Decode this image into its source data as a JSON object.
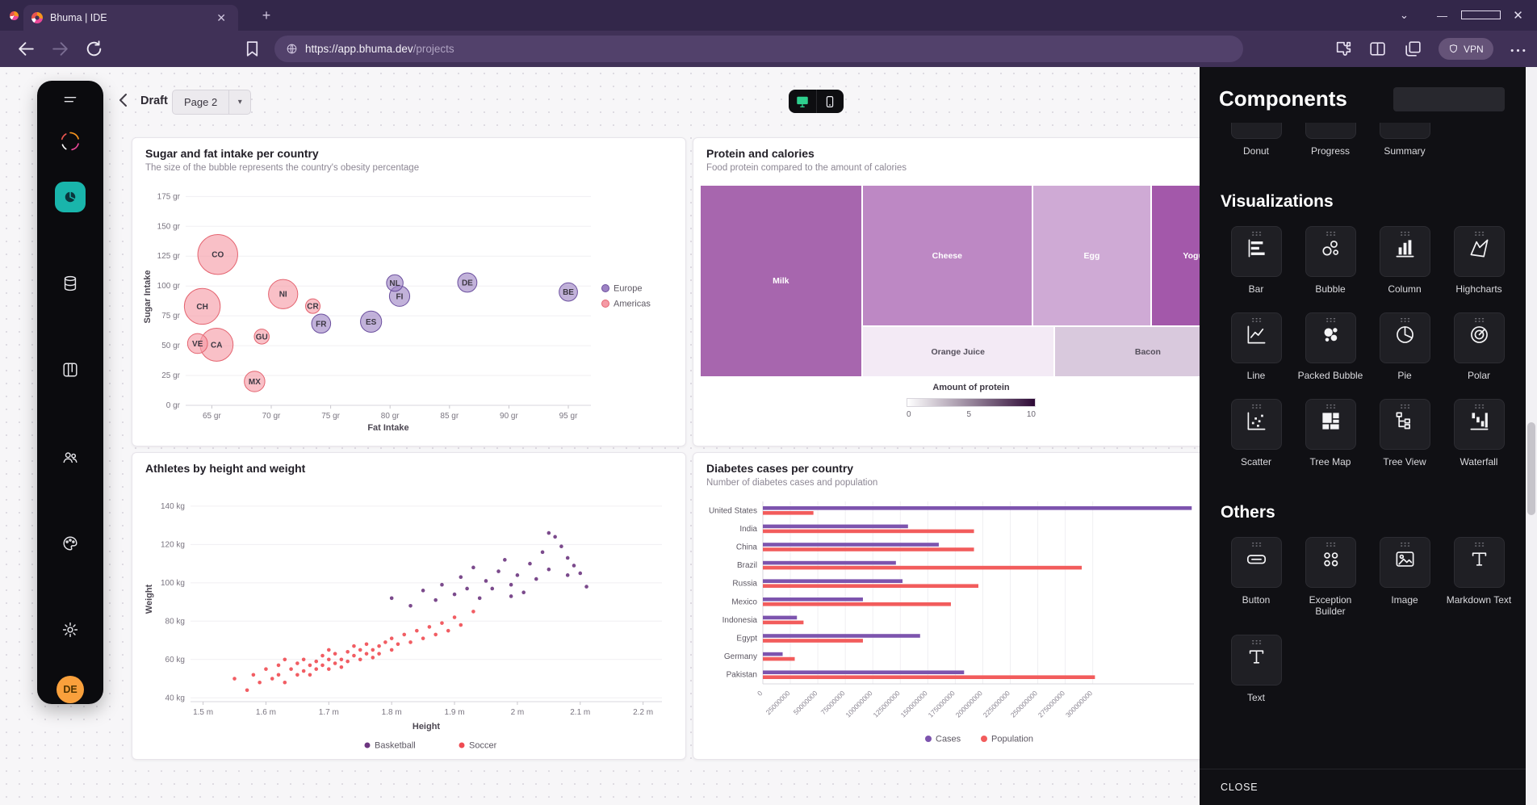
{
  "browser": {
    "tab_title": "Bhuma | IDE",
    "url_host": "https://app.bhuma.dev",
    "url_path": "/projects",
    "vpn_label": "VPN"
  },
  "topbar": {
    "draft_label": "Draft",
    "page_label": "Page 2"
  },
  "sidebar": {
    "avatar_initials": "DE"
  },
  "panel": {
    "title": "Components",
    "close_label": "CLOSE",
    "groups": [
      {
        "heading": "",
        "partial": true,
        "items": [
          {
            "label": "Donut",
            "icon": "donut-icon"
          },
          {
            "label": "Progress",
            "icon": "progress-icon"
          },
          {
            "label": "Summary",
            "icon": "summary-icon"
          }
        ]
      },
      {
        "heading": "Visualizations",
        "items": [
          {
            "label": "Bar",
            "icon": "bar-icon"
          },
          {
            "label": "Bubble",
            "icon": "bubble-icon"
          },
          {
            "label": "Column",
            "icon": "column-icon"
          },
          {
            "label": "Highcharts",
            "icon": "highcharts-icon"
          },
          {
            "label": "Line",
            "icon": "line-icon"
          },
          {
            "label": "Packed Bubble",
            "icon": "packed-bubble-icon"
          },
          {
            "label": "Pie",
            "icon": "pie-icon"
          },
          {
            "label": "Polar",
            "icon": "polar-icon"
          },
          {
            "label": "Scatter",
            "icon": "scatter-icon"
          },
          {
            "label": "Tree Map",
            "icon": "tree-map-icon"
          },
          {
            "label": "Tree View",
            "icon": "tree-view-icon"
          },
          {
            "label": "Waterfall",
            "icon": "waterfall-icon"
          }
        ]
      },
      {
        "heading": "Others",
        "items": [
          {
            "label": "Button",
            "icon": "button-icon"
          },
          {
            "label": "Exception Builder",
            "icon": "exception-builder-icon"
          },
          {
            "label": "Image",
            "icon": "image-icon"
          },
          {
            "label": "Markdown Text",
            "icon": "markdown-text-icon"
          },
          {
            "label": "Text",
            "icon": "text-icon"
          }
        ]
      }
    ]
  },
  "chart_data": [
    {
      "id": "sugar-fat",
      "type": "bubble",
      "title": "Sugar and fat intake per country",
      "subtitle": "The size of the bubble represents the country's obesity percentage",
      "xlabel": "Fat Intake",
      "ylabel": "Sugar Intake",
      "x_unit": " gr",
      "y_unit": " gr",
      "x_ticks": [
        65,
        70,
        75,
        80,
        85,
        90,
        95
      ],
      "y_ticks": [
        0,
        25,
        50,
        75,
        100,
        125,
        150,
        175
      ],
      "xlim": [
        62.8,
        96.9
      ],
      "ylim": [
        0,
        182
      ],
      "legend_position": "right",
      "series": [
        {
          "name": "Europe",
          "color": "#9D82C4",
          "stroke": "#6B4F9E",
          "points": [
            {
              "label": "FR",
              "x": 74.2,
              "y": 68.5,
              "size": 14.5
            },
            {
              "label": "ES",
              "x": 78.4,
              "y": 70.1,
              "size": 16.6
            },
            {
              "label": "NL",
              "x": 80.4,
              "y": 102.5,
              "size": 12.0
            },
            {
              "label": "FI",
              "x": 80.8,
              "y": 91.5,
              "size": 15.8
            },
            {
              "label": "DE",
              "x": 86.5,
              "y": 102.9,
              "size": 14.7
            },
            {
              "label": "BE",
              "x": 95.0,
              "y": 95.0,
              "size": 13.8
            }
          ]
        },
        {
          "name": "Americas",
          "color": "#F59AA5",
          "stroke": "#E4636F",
          "points": [
            {
              "label": "CO",
              "x": 65.5,
              "y": 126.4,
              "size": 35.3
            },
            {
              "label": "CH",
              "x": 64.2,
              "y": 82.9,
              "size": 31.3
            },
            {
              "label": "VE",
              "x": 63.8,
              "y": 51.8,
              "size": 15.4
            },
            {
              "label": "CA",
              "x": 65.4,
              "y": 50.8,
              "size": 28.5
            },
            {
              "label": "GU",
              "x": 69.2,
              "y": 57.6,
              "size": 10.4
            },
            {
              "label": "MX",
              "x": 68.6,
              "y": 20.0,
              "size": 16.0
            },
            {
              "label": "NI",
              "x": 71.0,
              "y": 93.2,
              "size": 24.7
            },
            {
              "label": "CR",
              "x": 73.5,
              "y": 83.1,
              "size": 10.0
            }
          ]
        }
      ]
    },
    {
      "id": "protein-calories",
      "type": "treemap",
      "title": "Protein and calories",
      "subtitle": "Food protein compared to the amount of calories",
      "legend_title": "Amount of protein",
      "legend_ticks": [
        0,
        5,
        10
      ],
      "legend_gradient": [
        "#FFFFFF",
        "#2E0A36"
      ],
      "blocks": [
        {
          "label": "Milk",
          "protein": 7,
          "color": "#A766AE",
          "text": "#FFFFFF",
          "x": 0,
          "y": 0,
          "w": 29.9,
          "h": 100
        },
        {
          "label": "Cheese",
          "protein": 5.5,
          "color": "#BD88C4",
          "text": "#FFFFFF",
          "x": 29.9,
          "y": 0,
          "w": 31.5,
          "h": 73.6
        },
        {
          "label": "Egg",
          "protein": 4.2,
          "color": "#CFAAD5",
          "text": "#FFFFFF",
          "x": 61.4,
          "y": 0,
          "w": 21.9,
          "h": 73.6
        },
        {
          "label": "Yogurt",
          "protein": 8,
          "color": "#A358AA",
          "text": "#FFFFFF",
          "x": 83.3,
          "y": 0,
          "w": 16.7,
          "h": 73.6
        },
        {
          "label": "Orange Juice",
          "protein": 0.5,
          "color": "#F3EAF5",
          "text": "#55505C",
          "x": 29.9,
          "y": 73.6,
          "w": 35.5,
          "h": 26.4
        },
        {
          "label": "Bacon",
          "protein": 2.5,
          "color": "#D9C9DD",
          "text": "#55505C",
          "x": 65.4,
          "y": 73.6,
          "w": 34.6,
          "h": 26.4
        }
      ]
    },
    {
      "id": "athletes",
      "type": "scatter",
      "title": "Athletes by height and weight",
      "xlabel": "Height",
      "ylabel": "Weight",
      "x_unit": " m",
      "y_unit": " kg",
      "x_ticks": [
        1.5,
        1.6,
        1.7,
        1.8,
        1.9,
        2,
        2.1,
        2.2
      ],
      "y_ticks": [
        40,
        60,
        80,
        100,
        120,
        140
      ],
      "xlim": [
        1.48,
        2.23
      ],
      "ylim": [
        38,
        145
      ],
      "legend_position": "bottom",
      "series": [
        {
          "name": "Basketball",
          "color": "#6D3680",
          "points": [
            [
              1.8,
              92
            ],
            [
              1.83,
              88
            ],
            [
              1.85,
              96
            ],
            [
              1.87,
              91
            ],
            [
              1.88,
              99
            ],
            [
              1.9,
              94
            ],
            [
              1.91,
              103
            ],
            [
              1.92,
              97
            ],
            [
              1.93,
              108
            ],
            [
              1.94,
              92
            ],
            [
              1.95,
              101
            ],
            [
              1.96,
              97
            ],
            [
              1.97,
              106
            ],
            [
              1.98,
              112
            ],
            [
              1.99,
              99
            ],
            [
              2.0,
              104
            ],
            [
              2.01,
              95
            ],
            [
              2.02,
              110
            ],
            [
              2.03,
              102
            ],
            [
              2.04,
              116
            ],
            [
              2.05,
              107
            ],
            [
              2.06,
              124
            ],
            [
              2.07,
              119
            ],
            [
              2.08,
              104
            ],
            [
              2.08,
              113
            ],
            [
              2.09,
              109
            ],
            [
              2.1,
              105
            ],
            [
              2.11,
              98
            ],
            [
              2.05,
              126
            ],
            [
              1.99,
              93
            ]
          ]
        },
        {
          "name": "Soccer",
          "color": "#EF4B52",
          "points": [
            [
              1.55,
              50
            ],
            [
              1.57,
              44
            ],
            [
              1.58,
              52
            ],
            [
              1.59,
              48
            ],
            [
              1.6,
              55
            ],
            [
              1.61,
              50
            ],
            [
              1.62,
              57
            ],
            [
              1.62,
              52
            ],
            [
              1.63,
              48
            ],
            [
              1.63,
              60
            ],
            [
              1.64,
              55
            ],
            [
              1.65,
              52
            ],
            [
              1.65,
              58
            ],
            [
              1.66,
              54
            ],
            [
              1.66,
              60
            ],
            [
              1.67,
              57
            ],
            [
              1.67,
              52
            ],
            [
              1.68,
              59
            ],
            [
              1.68,
              55
            ],
            [
              1.69,
              62
            ],
            [
              1.69,
              57
            ],
            [
              1.7,
              60
            ],
            [
              1.7,
              55
            ],
            [
              1.7,
              65
            ],
            [
              1.71,
              58
            ],
            [
              1.71,
              63
            ],
            [
              1.72,
              60
            ],
            [
              1.72,
              56
            ],
            [
              1.73,
              64
            ],
            [
              1.73,
              59
            ],
            [
              1.74,
              62
            ],
            [
              1.74,
              67
            ],
            [
              1.75,
              60
            ],
            [
              1.75,
              65
            ],
            [
              1.76,
              63
            ],
            [
              1.76,
              68
            ],
            [
              1.77,
              65
            ],
            [
              1.77,
              61
            ],
            [
              1.78,
              67
            ],
            [
              1.78,
              63
            ],
            [
              1.79,
              69
            ],
            [
              1.8,
              65
            ],
            [
              1.8,
              71
            ],
            [
              1.81,
              68
            ],
            [
              1.82,
              73
            ],
            [
              1.83,
              69
            ],
            [
              1.84,
              75
            ],
            [
              1.85,
              71
            ],
            [
              1.86,
              77
            ],
            [
              1.87,
              73
            ],
            [
              1.88,
              79
            ],
            [
              1.89,
              75
            ],
            [
              1.9,
              82
            ],
            [
              1.91,
              78
            ],
            [
              1.93,
              85
            ]
          ]
        }
      ]
    },
    {
      "id": "diabetes",
      "type": "bar-horizontal",
      "title": "Diabetes cases per country",
      "subtitle": "Number of diabetes cases and population",
      "categories": [
        "United States",
        "India",
        "China",
        "Brazil",
        "Russia",
        "Mexico",
        "Indonesia",
        "Egypt",
        "Germany",
        "Pakistan"
      ],
      "x_ticks": [
        0,
        25000000,
        50000000,
        75000000,
        100000000,
        125000000,
        150000000,
        175000000,
        200000000,
        225000000,
        250000000,
        275000000,
        300000000
      ],
      "xlim": [
        0,
        392000000
      ],
      "legend_position": "bottom",
      "series": [
        {
          "name": "Cases",
          "color": "#7D54AE",
          "values": [
            390000000,
            132000000,
            160000000,
            121000000,
            127000000,
            91000000,
            31000000,
            143000000,
            18000000,
            183000000
          ]
        },
        {
          "name": "Population",
          "color": "#F25C5C",
          "values": [
            46000000,
            192000000,
            192000000,
            290000000,
            196000000,
            171000000,
            37000000,
            91000000,
            29000000,
            302000000
          ]
        }
      ]
    }
  ]
}
